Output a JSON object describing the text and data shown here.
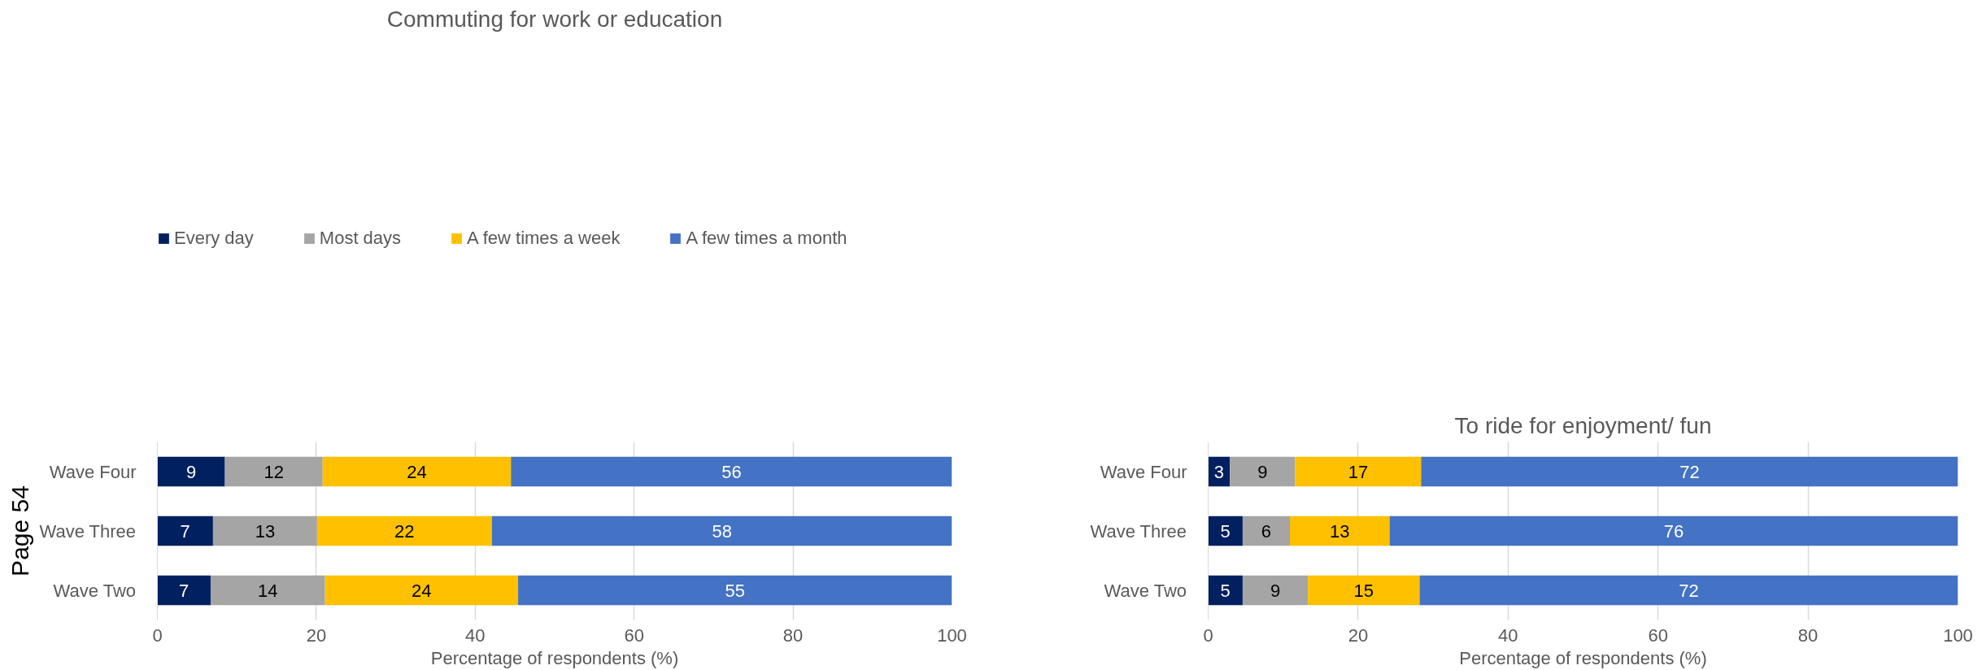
{
  "chart_data": [
    {
      "type": "bar",
      "orientation": "horizontal",
      "stacked": true,
      "title": "Commuting for work or education",
      "xlabel": "Percentage of respondents (%)",
      "categories": [
        "Wave Four",
        "Wave Three",
        "Wave Two"
      ],
      "series": [
        {
          "name": "Every day",
          "color": "#002060",
          "values": [
            8.5,
            7.0,
            6.7
          ],
          "value_labels": [
            "9",
            "7",
            "7"
          ]
        },
        {
          "name": "Most days",
          "color": "#a5a5a5",
          "values": [
            12.3,
            13.1,
            14.4
          ],
          "value_labels": [
            "12",
            "13",
            "14"
          ]
        },
        {
          "name": "A few times a week",
          "color": "#ffc000",
          "values": [
            23.7,
            22.0,
            24.3
          ],
          "value_labels": [
            "24",
            "22",
            "24"
          ]
        },
        {
          "name": "A few times a month",
          "color": "#4472c4",
          "values": [
            55.5,
            57.9,
            54.6
          ],
          "value_labels": [
            "56",
            "58",
            "55"
          ]
        }
      ],
      "xlim": [
        0,
        100
      ],
      "xticks": [
        0,
        20,
        40,
        60,
        80,
        100
      ],
      "grid": "x",
      "legend": "top",
      "annotations": [
        "Page 54"
      ]
    },
    {
      "type": "bar",
      "orientation": "horizontal",
      "stacked": true,
      "title": "To ride for enjoyment/ fun",
      "xlabel": "Percentage of respondents (%)",
      "categories": [
        "Wave Four",
        "Wave Three",
        "Wave Two"
      ],
      "series": [
        {
          "color": "#002060",
          "values": [
            2.9,
            4.6,
            4.6
          ],
          "value_labels": [
            "3",
            "5",
            "5"
          ]
        },
        {
          "color": "#a5a5a5",
          "values": [
            8.7,
            6.3,
            8.7
          ],
          "value_labels": [
            "9",
            "6",
            "9"
          ]
        },
        {
          "color": "#ffc000",
          "values": [
            16.8,
            13.3,
            14.9
          ],
          "value_labels": [
            "17",
            "13",
            "15"
          ]
        },
        {
          "color": "#4472c4",
          "values": [
            71.6,
            75.8,
            71.8
          ],
          "value_labels": [
            "72",
            "76",
            "72"
          ]
        }
      ],
      "xlim": [
        0,
        100
      ],
      "xticks": [
        0,
        20,
        40,
        60,
        80,
        100
      ],
      "grid": "x"
    }
  ]
}
